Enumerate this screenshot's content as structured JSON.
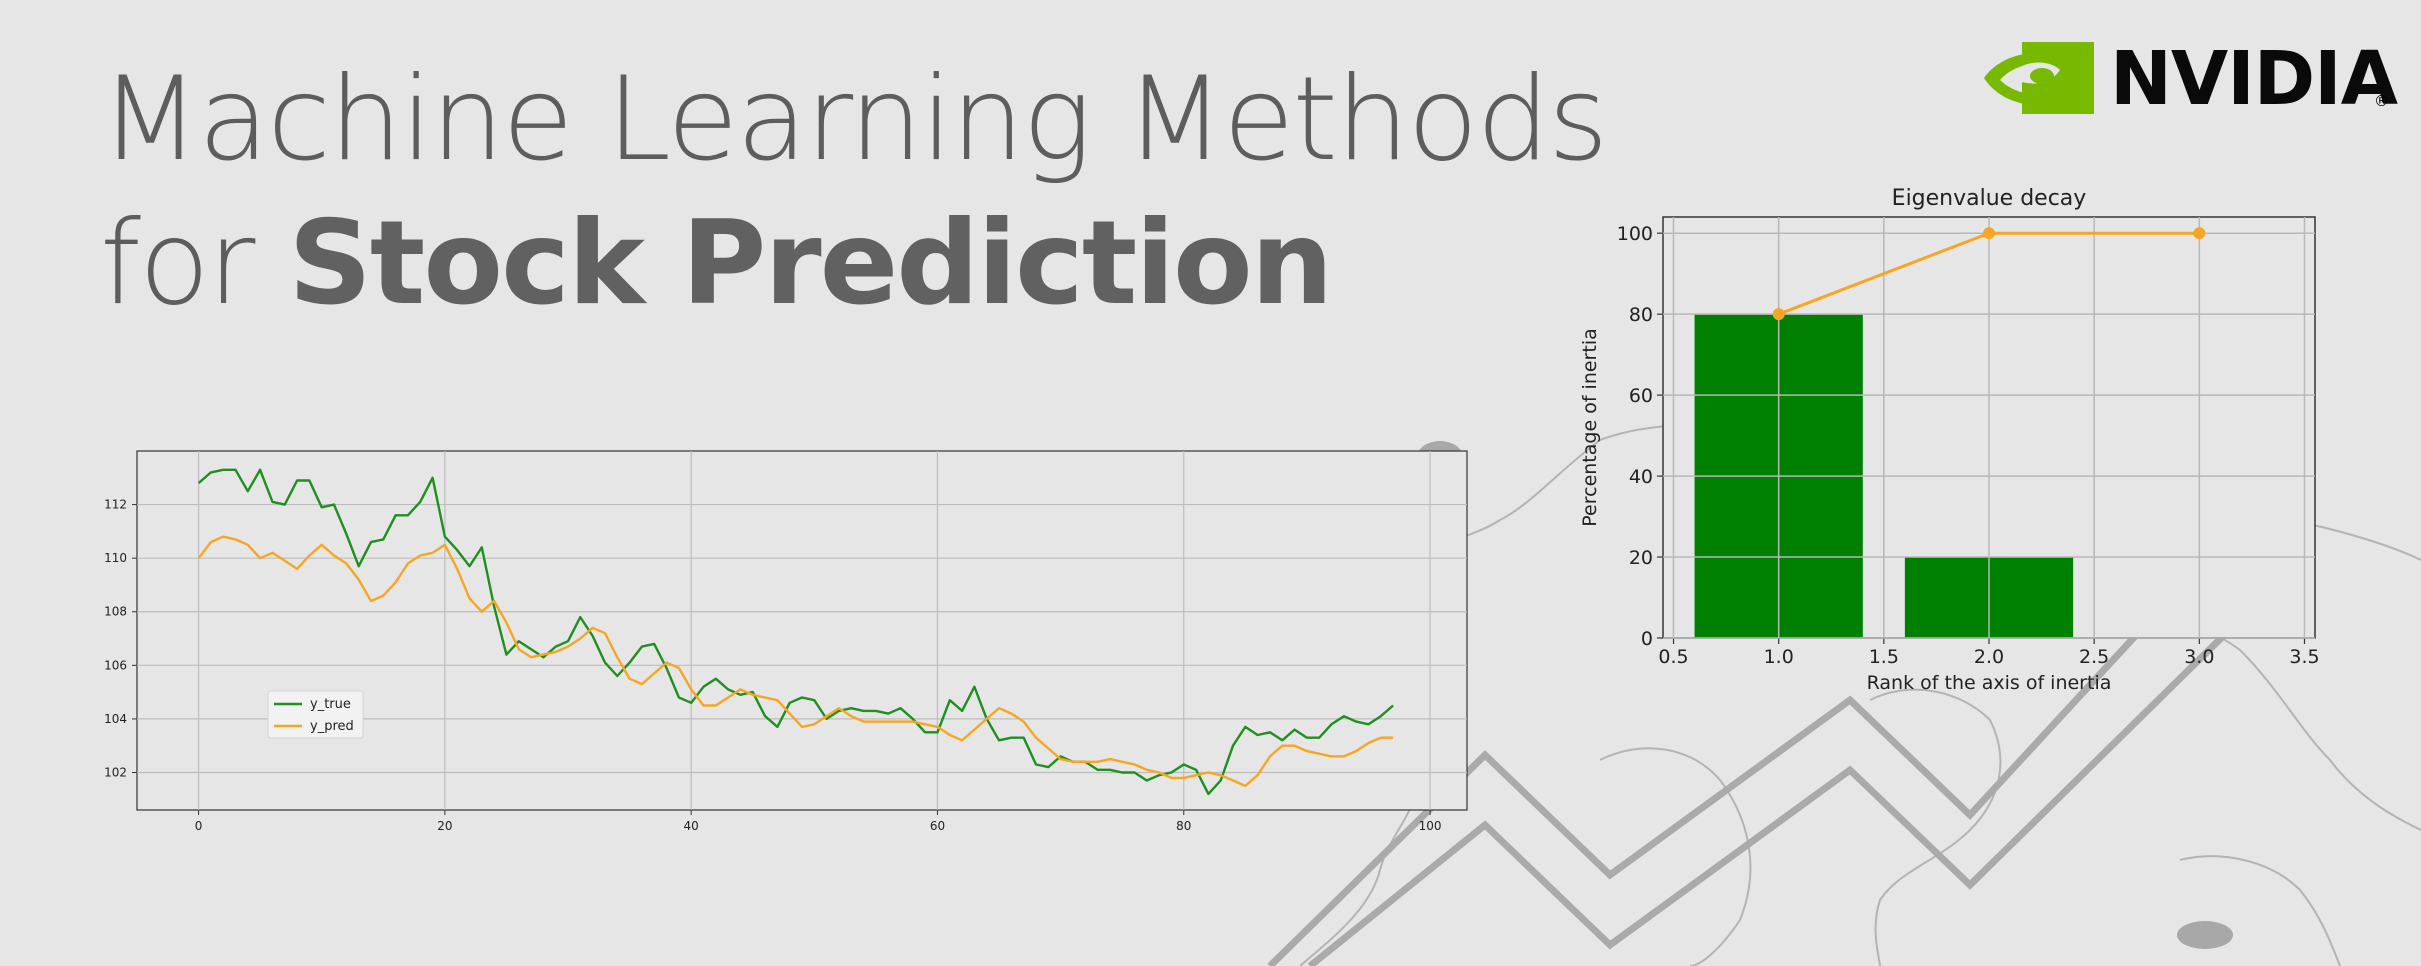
{
  "title": {
    "line1": "Machine Learning Methods",
    "line2_light": "for ",
    "line2_bold": "Stock Prediction"
  },
  "logo": {
    "word": "NVIDIA",
    "reg": "®",
    "icon": "nvidia-eye-icon"
  },
  "colors": {
    "background": "#e6e6e6",
    "title": "#5d5d5d",
    "nvidia_green": "#76b900",
    "true_line": "#1f8f1f",
    "pred_line": "#f5a623",
    "bar": "#008000",
    "decor": "#b0b0b0"
  },
  "chart_data": [
    {
      "type": "line",
      "title": "",
      "xlabel": "",
      "ylabel": "",
      "xlim": [
        -5,
        103
      ],
      "ylim": [
        100.6,
        114
      ],
      "xticks": [
        0,
        20,
        40,
        60,
        80,
        100
      ],
      "yticks": [
        102,
        104,
        106,
        108,
        110,
        112
      ],
      "grid": true,
      "legend": "lower-left",
      "series": [
        {
          "name": "y_true",
          "color": "#1f8f1f",
          "x_start": 0,
          "values": [
            112.8,
            113.2,
            113.3,
            113.3,
            112.5,
            113.3,
            112.1,
            112.0,
            112.9,
            112.9,
            111.9,
            112.0,
            110.9,
            109.7,
            110.6,
            110.7,
            111.6,
            111.6,
            112.1,
            113.0,
            110.8,
            110.3,
            109.7,
            110.4,
            108.2,
            106.4,
            106.9,
            106.6,
            106.3,
            106.7,
            106.9,
            107.8,
            107.1,
            106.1,
            105.6,
            106.1,
            106.7,
            106.8,
            105.9,
            104.8,
            104.6,
            105.2,
            105.5,
            105.1,
            104.9,
            105.0,
            104.1,
            103.7,
            104.6,
            104.8,
            104.7,
            104.0,
            104.3,
            104.4,
            104.3,
            104.3,
            104.2,
            104.4,
            104.0,
            103.5,
            103.5,
            104.7,
            104.3,
            105.2,
            104.0,
            103.2,
            103.3,
            103.3,
            102.3,
            102.2,
            102.6,
            102.4,
            102.4,
            102.1,
            102.1,
            102.0,
            102.0,
            101.7,
            101.9,
            102.0,
            102.3,
            102.1,
            101.2,
            101.7,
            103.0,
            103.7,
            103.4,
            103.5,
            103.2,
            103.6,
            103.3,
            103.3,
            103.8,
            104.1,
            103.9,
            103.8,
            104.1,
            104.5
          ]
        },
        {
          "name": "y_pred",
          "color": "#f5a623",
          "x_start": 0,
          "values": [
            110.0,
            110.6,
            110.8,
            110.7,
            110.5,
            110.0,
            110.2,
            109.9,
            109.6,
            110.1,
            110.5,
            110.1,
            109.8,
            109.2,
            108.4,
            108.6,
            109.1,
            109.8,
            110.1,
            110.2,
            110.5,
            109.6,
            108.5,
            108.0,
            108.4,
            107.6,
            106.6,
            106.3,
            106.4,
            106.5,
            106.7,
            107.0,
            107.4,
            107.2,
            106.3,
            105.5,
            105.3,
            105.7,
            106.1,
            105.9,
            105.1,
            104.5,
            104.5,
            104.8,
            105.1,
            104.9,
            104.8,
            104.7,
            104.2,
            103.7,
            103.8,
            104.1,
            104.4,
            104.1,
            103.9,
            103.9,
            103.9,
            103.9,
            103.9,
            103.8,
            103.7,
            103.4,
            103.2,
            103.6,
            104.0,
            104.4,
            104.2,
            103.9,
            103.3,
            102.9,
            102.5,
            102.4,
            102.4,
            102.4,
            102.5,
            102.4,
            102.3,
            102.1,
            102.0,
            101.8,
            101.8,
            101.9,
            102.0,
            101.9,
            101.7,
            101.5,
            101.9,
            102.6,
            103.0,
            103.0,
            102.8,
            102.7,
            102.6,
            102.6,
            102.8,
            103.1,
            103.3,
            103.3
          ]
        }
      ]
    },
    {
      "type": "bar",
      "title": "Eigenvalue decay",
      "xlabel": "Rank of the axis of inertia",
      "ylabel": "Percentage of inertia",
      "xlim": [
        0.45,
        3.55
      ],
      "ylim": [
        0,
        104
      ],
      "xticks": [
        0.5,
        1.0,
        1.5,
        2.0,
        2.5,
        3.0,
        3.5
      ],
      "xtick_labels": [
        "0.5",
        "1.0",
        "1.5",
        "2.0",
        "2.5",
        "3.0",
        "3.5"
      ],
      "yticks": [
        0,
        20,
        40,
        60,
        80,
        100
      ],
      "grid": true,
      "bars": {
        "x": [
          1,
          2
        ],
        "values": [
          80,
          20
        ],
        "color": "#008000"
      },
      "cumulative": {
        "x": [
          1,
          2,
          3
        ],
        "values": [
          80,
          100,
          100
        ],
        "color": "#f5a623"
      }
    }
  ]
}
